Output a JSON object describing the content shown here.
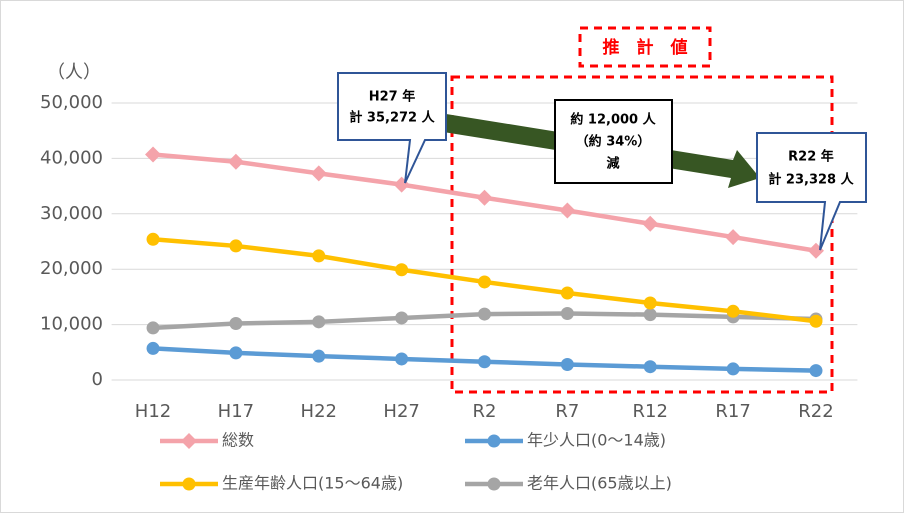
{
  "chart_data": {
    "type": "line",
    "y_unit": "（人）",
    "categories": [
      "H12",
      "H17",
      "H22",
      "H27",
      "R2",
      "R7",
      "R12",
      "R17",
      "R22"
    ],
    "series": [
      {
        "name": "総数",
        "color": "#f4a3aa",
        "marker": "diamond",
        "values": [
          40700,
          39400,
          37300,
          35272,
          32900,
          30600,
          28200,
          25800,
          23328
        ]
      },
      {
        "name": "年少人口(0～14歳)",
        "color": "#5b9bd5",
        "marker": "circle",
        "values": [
          5700,
          4900,
          4300,
          3800,
          3300,
          2800,
          2400,
          2000,
          1700
        ]
      },
      {
        "name": "生産年齢人口(15～64歳)",
        "color": "#ffc000",
        "marker": "circle",
        "values": [
          25400,
          24200,
          22400,
          19900,
          17700,
          15700,
          13900,
          12400,
          10600
        ]
      },
      {
        "name": "老年人口(65歳以上)",
        "color": "#a5a5a5",
        "marker": "circle",
        "values": [
          9400,
          10200,
          10500,
          11200,
          11900,
          12000,
          11800,
          11400,
          11000
        ]
      }
    ],
    "ylim": [
      0,
      50000
    ],
    "yticks": [
      0,
      {
        "value": 10000,
        "label": "10,000"
      },
      {
        "value": 20000,
        "label": "20,000"
      },
      {
        "value": 30000,
        "label": "30,000"
      },
      {
        "value": 40000,
        "label": "40,000"
      },
      {
        "value": 50000,
        "label": "50,000"
      }
    ],
    "grid": true,
    "annotations": {
      "estimate": "推　計　値",
      "h27": [
        "H27 年",
        "計 35,272 人"
      ],
      "decrease": [
        "約 12,000 人",
        "（約 34%）",
        "減"
      ],
      "r22": [
        "R22 年",
        "計 23,328 人"
      ]
    }
  }
}
